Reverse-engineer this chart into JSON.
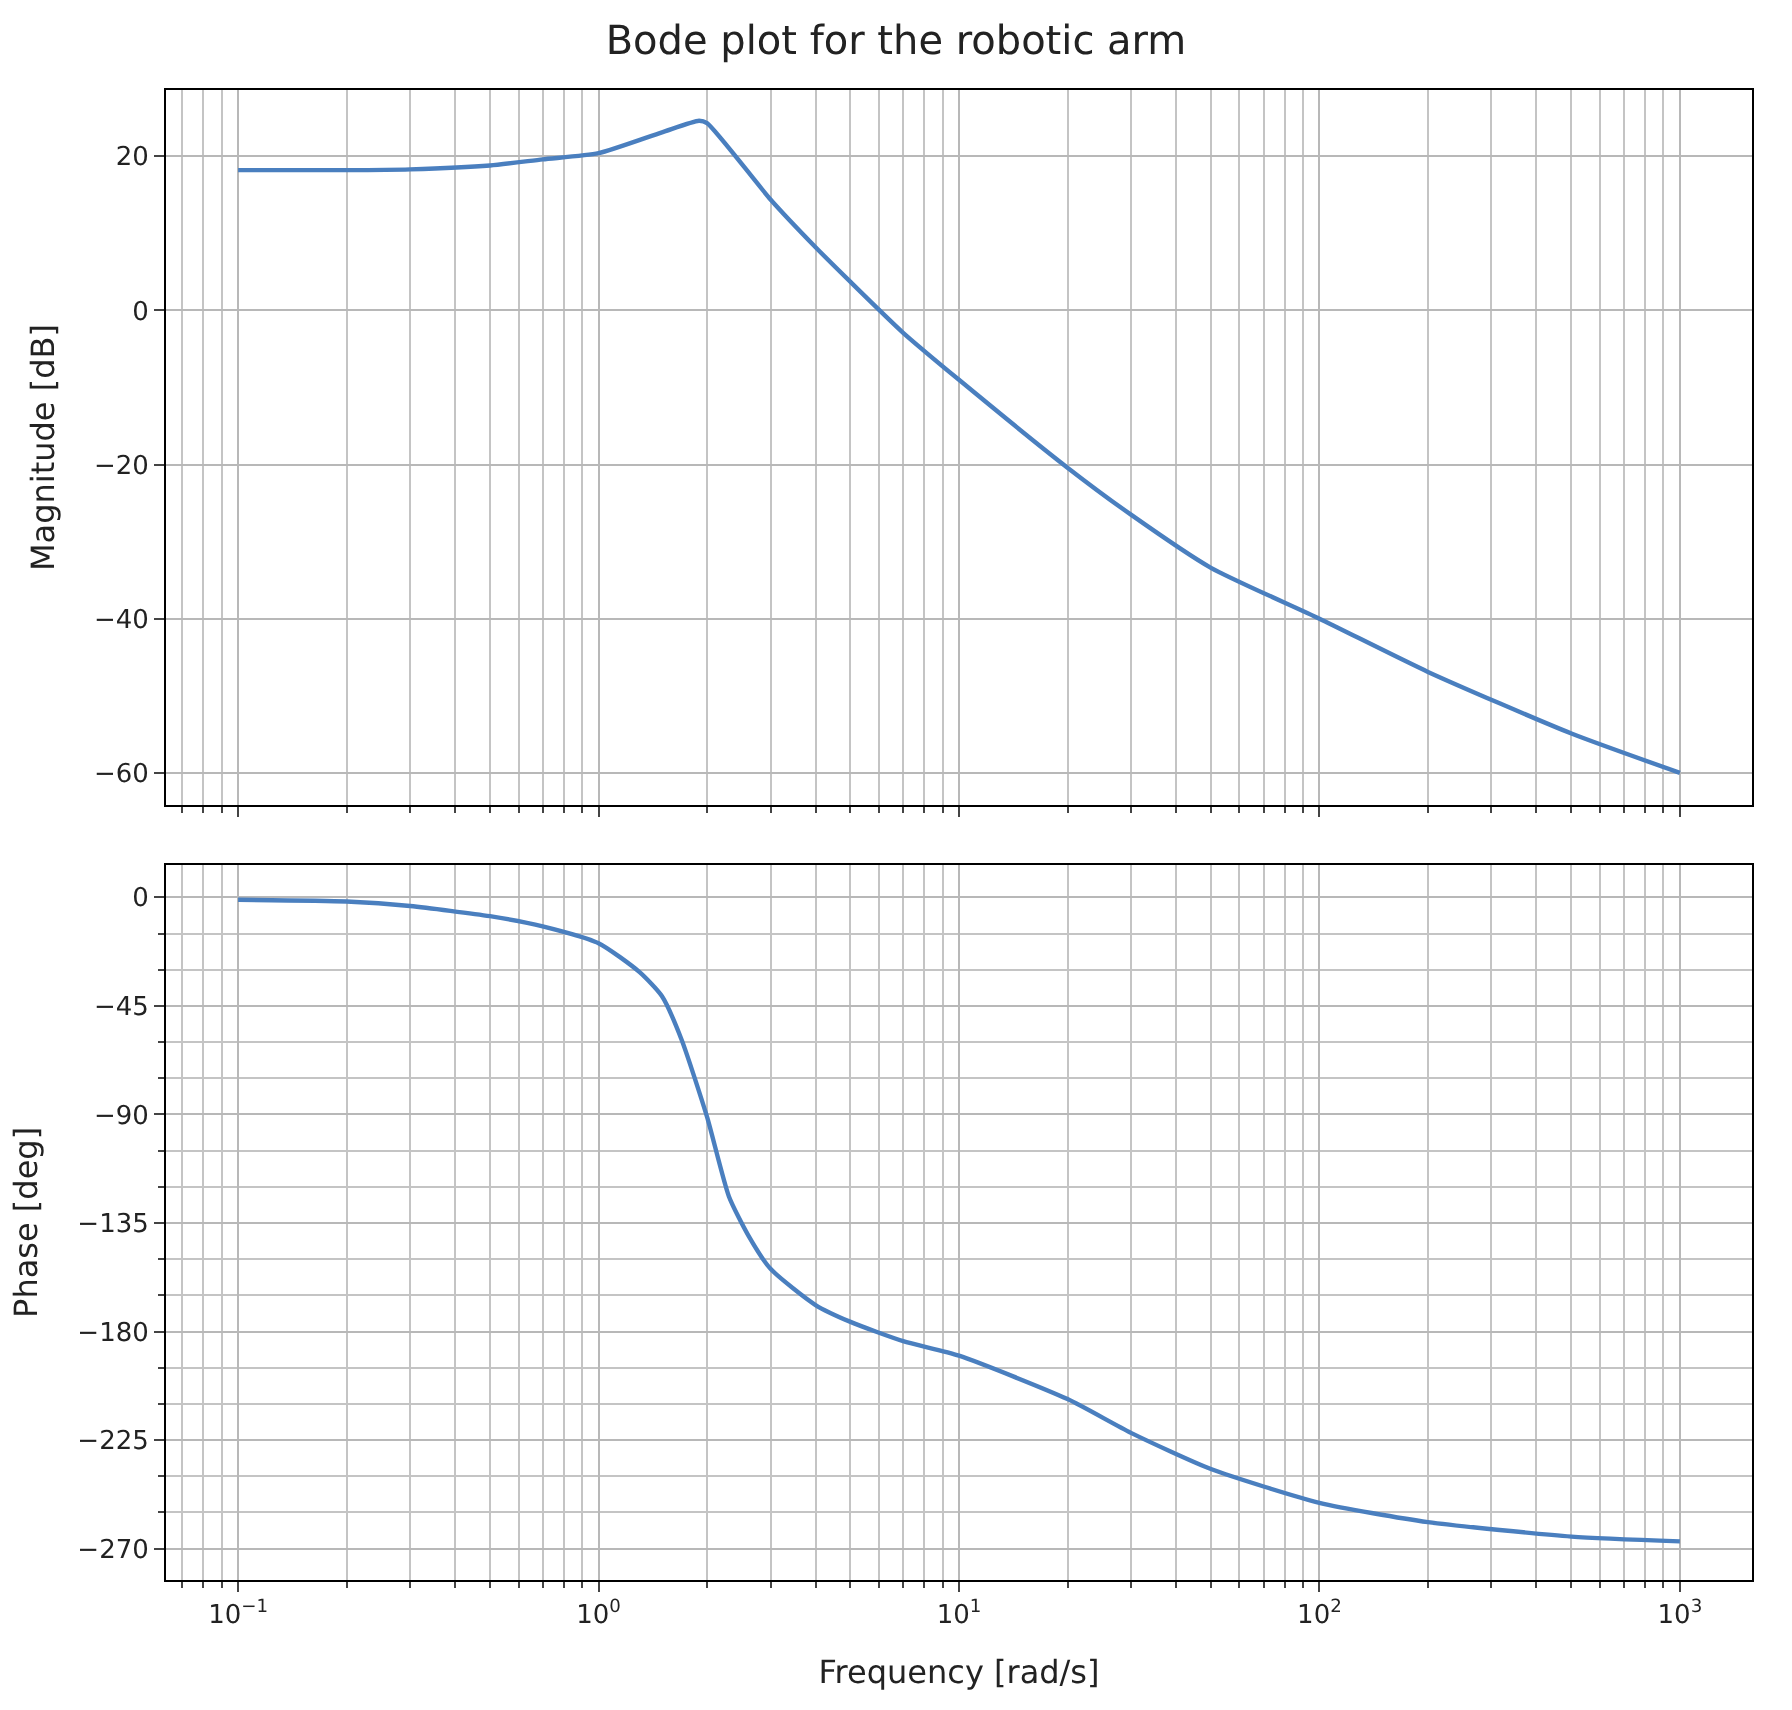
{
  "chart_data": [
    {
      "type": "line",
      "title": "Bode plot for the robotic arm",
      "ylabel": "Magnitude [dB]",
      "log": "x",
      "grid": true,
      "tick_labels": "y",
      "marker": "none",
      "line_style": "solid",
      "xlim": [
        0.0631,
        1585
      ],
      "xticks": [
        {
          "value": 0.1,
          "label": "10$^{−1}$"
        },
        {
          "value": 1,
          "label": "10$^{0}$"
        },
        {
          "value": 10,
          "label": "10$^{1}$"
        },
        {
          "value": 100,
          "label": "10$^{2}$"
        },
        {
          "value": 1000,
          "label": "10$^{3}$"
        }
      ],
      "ylim": [
        -64.2,
        28.6
      ],
      "yticks": [
        -60,
        -40,
        -20,
        0,
        20
      ],
      "x": [
        0.1,
        0.2,
        0.3,
        0.5,
        0.7,
        1,
        1.5,
        1.9,
        2,
        3,
        4,
        5,
        7,
        10,
        20,
        30,
        50,
        100,
        200,
        500,
        1000
      ],
      "series": [
        {
          "color": "#4a7fbf",
          "values": [
            18.2,
            18.2,
            18.3,
            18.8,
            19.6,
            20.4,
            23.1,
            24.6,
            24.3,
            14.4,
            8.2,
            3.7,
            -2.9,
            -9,
            -20.4,
            -26.5,
            -33.4,
            -40,
            -46.9,
            -54.9,
            -60
          ]
        }
      ]
    },
    {
      "type": "line",
      "xlabel": "Frequency [rad/s]",
      "ylabel": "Phase [deg]",
      "log": "x",
      "grid": true,
      "marker": "none",
      "line_style": "solid",
      "xlim": [
        0.0631,
        1585
      ],
      "xticks": [
        {
          "value": 0.1,
          "label": "10$^{−1}$"
        },
        {
          "value": 1,
          "label": "10$^{0}$"
        },
        {
          "value": 10,
          "label": "10$^{1}$"
        },
        {
          "value": 100,
          "label": "10$^{2}$"
        },
        {
          "value": 1000,
          "label": "10$^{3}$"
        }
      ],
      "ylim": [
        -283,
        13.5
      ],
      "yticks": [
        {
          "value": -270,
          "label": "−270"
        },
        {
          "value": -225,
          "label": "−225"
        },
        {
          "value": -180,
          "label": "−180"
        },
        {
          "value": -135,
          "label": "−135"
        },
        {
          "value": -90,
          "label": "−90"
        },
        {
          "value": -45,
          "label": "−45"
        },
        0
      ],
      "x": [
        0.1,
        0.2,
        0.3,
        0.5,
        0.7,
        1,
        1.3,
        1.5,
        1.7,
        2,
        2.3,
        2.6,
        3,
        4,
        5,
        7,
        10,
        20,
        30,
        50,
        100,
        200,
        500,
        1000
      ],
      "series": [
        {
          "color": "#4a7fbf",
          "values": [
            -1,
            -1.7,
            -3.6,
            -7.8,
            -12,
            -19,
            -31,
            -41,
            -59,
            -91,
            -124,
            -140,
            -154,
            -169,
            -176,
            -184,
            -190,
            -208,
            -222,
            -237,
            -251,
            -259,
            -265,
            -267
          ]
        }
      ]
    }
  ]
}
